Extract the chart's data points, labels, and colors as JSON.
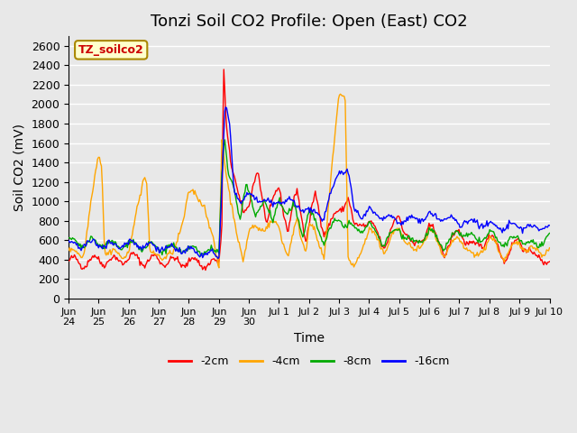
{
  "title": "Tonzi Soil CO2 Profile: Open (East) CO2",
  "ylabel": "Soil CO2 (mV)",
  "xlabel": "Time",
  "box_label": "TZ_soilco2",
  "legend_labels": [
    "-2cm",
    "-4cm",
    "-8cm",
    "-16cm"
  ],
  "legend_colors": [
    "#ff0000",
    "#ffa500",
    "#00aa00",
    "#0000ff"
  ],
  "ylim": [
    0,
    2700
  ],
  "yticks": [
    0,
    200,
    400,
    600,
    800,
    1000,
    1200,
    1400,
    1600,
    1800,
    2000,
    2200,
    2400,
    2600
  ],
  "background_color": "#e8e8e8",
  "plot_background": "#e8e8e8",
  "grid_color": "#ffffff",
  "title_fontsize": 13,
  "axis_fontsize": 10,
  "tick_fontsize": 9
}
